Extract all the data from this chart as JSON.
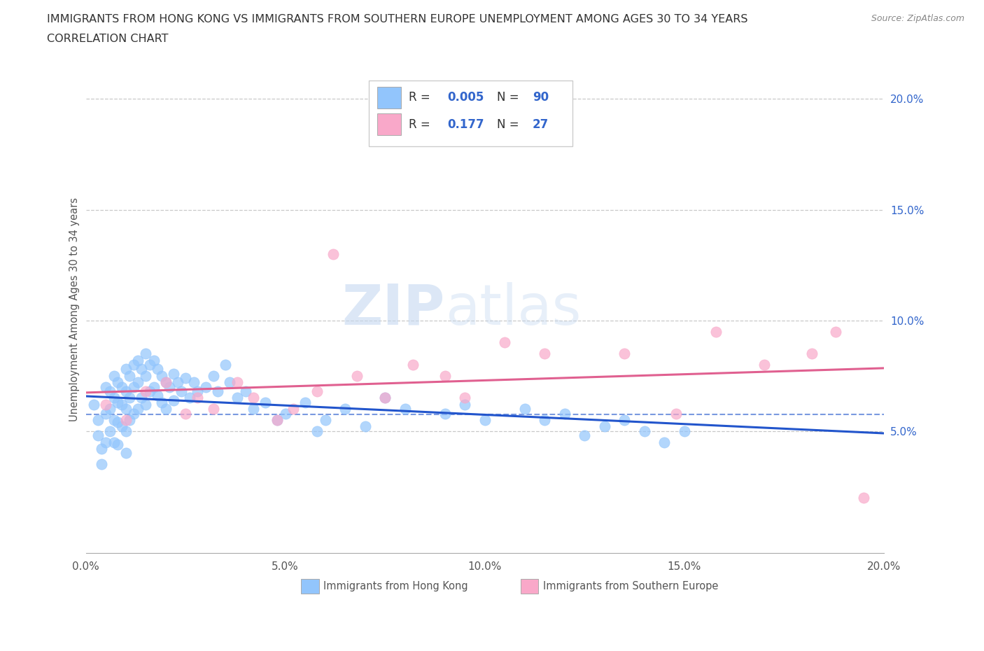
{
  "title_line1": "IMMIGRANTS FROM HONG KONG VS IMMIGRANTS FROM SOUTHERN EUROPE UNEMPLOYMENT AMONG AGES 30 TO 34 YEARS",
  "title_line2": "CORRELATION CHART",
  "source_text": "Source: ZipAtlas.com",
  "ylabel": "Unemployment Among Ages 30 to 34 years",
  "xlim": [
    0.0,
    0.2
  ],
  "ylim": [
    -0.005,
    0.215
  ],
  "yticks": [
    0.05,
    0.1,
    0.15,
    0.2
  ],
  "ytick_labels": [
    "5.0%",
    "10.0%",
    "15.0%",
    "20.0%"
  ],
  "xticks": [
    0.0,
    0.05,
    0.1,
    0.15,
    0.2
  ],
  "xtick_labels": [
    "0.0%",
    "5.0%",
    "10.0%",
    "15.0%",
    "20.0%"
  ],
  "color_hk": "#92C5FC",
  "color_se": "#F9A8C9",
  "trendline_hk_color": "#2255CC",
  "trendline_se_color": "#E06090",
  "R_hk": "0.005",
  "N_hk": "90",
  "R_se": "0.177",
  "N_se": "27",
  "legend_label_hk": "Immigrants from Hong Kong",
  "legend_label_se": "Immigrants from Southern Europe",
  "watermark": "ZIPatlas",
  "bg_color": "#FFFFFF",
  "grid_color": "#C8C8C8",
  "title_color": "#333333",
  "axis_label_color": "#555555",
  "right_tick_color": "#3366CC",
  "blue_val_color": "#3366CC",
  "hk_x": [
    0.002,
    0.003,
    0.003,
    0.004,
    0.004,
    0.005,
    0.005,
    0.005,
    0.006,
    0.006,
    0.006,
    0.007,
    0.007,
    0.007,
    0.007,
    0.008,
    0.008,
    0.008,
    0.008,
    0.009,
    0.009,
    0.009,
    0.01,
    0.01,
    0.01,
    0.01,
    0.01,
    0.011,
    0.011,
    0.011,
    0.012,
    0.012,
    0.012,
    0.013,
    0.013,
    0.013,
    0.014,
    0.014,
    0.015,
    0.015,
    0.015,
    0.016,
    0.016,
    0.017,
    0.017,
    0.018,
    0.018,
    0.019,
    0.019,
    0.02,
    0.02,
    0.021,
    0.022,
    0.022,
    0.023,
    0.024,
    0.025,
    0.026,
    0.027,
    0.028,
    0.03,
    0.032,
    0.033,
    0.035,
    0.036,
    0.038,
    0.04,
    0.042,
    0.045,
    0.048,
    0.05,
    0.055,
    0.058,
    0.06,
    0.065,
    0.07,
    0.075,
    0.08,
    0.09,
    0.095,
    0.1,
    0.11,
    0.115,
    0.12,
    0.125,
    0.13,
    0.135,
    0.14,
    0.145,
    0.15
  ],
  "hk_y": [
    0.062,
    0.055,
    0.048,
    0.042,
    0.035,
    0.07,
    0.058,
    0.045,
    0.068,
    0.06,
    0.05,
    0.075,
    0.065,
    0.055,
    0.045,
    0.072,
    0.063,
    0.054,
    0.044,
    0.07,
    0.062,
    0.052,
    0.078,
    0.068,
    0.06,
    0.05,
    0.04,
    0.075,
    0.065,
    0.055,
    0.08,
    0.07,
    0.058,
    0.082,
    0.072,
    0.06,
    0.078,
    0.065,
    0.085,
    0.075,
    0.062,
    0.08,
    0.068,
    0.082,
    0.07,
    0.078,
    0.066,
    0.075,
    0.063,
    0.072,
    0.06,
    0.07,
    0.076,
    0.064,
    0.072,
    0.068,
    0.074,
    0.065,
    0.072,
    0.068,
    0.07,
    0.075,
    0.068,
    0.08,
    0.072,
    0.065,
    0.068,
    0.06,
    0.063,
    0.055,
    0.058,
    0.063,
    0.05,
    0.055,
    0.06,
    0.052,
    0.065,
    0.06,
    0.058,
    0.062,
    0.055,
    0.06,
    0.055,
    0.058,
    0.048,
    0.052,
    0.055,
    0.05,
    0.045,
    0.05
  ],
  "se_x": [
    0.005,
    0.01,
    0.015,
    0.02,
    0.025,
    0.028,
    0.032,
    0.038,
    0.042,
    0.048,
    0.052,
    0.058,
    0.062,
    0.068,
    0.075,
    0.082,
    0.09,
    0.095,
    0.105,
    0.115,
    0.135,
    0.148,
    0.158,
    0.17,
    0.182,
    0.188,
    0.195
  ],
  "se_y": [
    0.062,
    0.055,
    0.068,
    0.072,
    0.058,
    0.065,
    0.06,
    0.072,
    0.065,
    0.055,
    0.06,
    0.068,
    0.13,
    0.075,
    0.065,
    0.08,
    0.075,
    0.065,
    0.09,
    0.085,
    0.085,
    0.058,
    0.095,
    0.08,
    0.085,
    0.095,
    0.02
  ]
}
